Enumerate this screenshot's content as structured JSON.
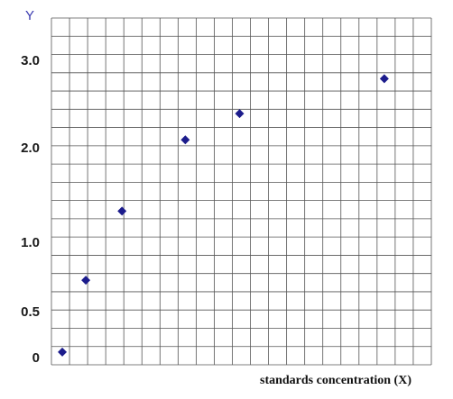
{
  "chart_data": {
    "type": "scatter",
    "ylabel": "Y",
    "xlabel": "standards concentration (X)",
    "yticks": [
      {
        "label": "0",
        "value": 0
      },
      {
        "label": "0.5",
        "value": 0.5
      },
      {
        "label": "1.0",
        "value": 1.0
      },
      {
        "label": "2.0",
        "value": 2.0
      },
      {
        "label": "3.0",
        "value": 3.0
      }
    ],
    "points": [
      {
        "x": 0.6,
        "y": 0.05
      },
      {
        "x": 1.9,
        "y": 0.72
      },
      {
        "x": 3.9,
        "y": 1.32
      },
      {
        "x": 7.4,
        "y": 2.08
      },
      {
        "x": 10.4,
        "y": 2.38
      },
      {
        "x": 18.4,
        "y": 2.78
      }
    ],
    "grid": true,
    "marker": "diamond",
    "colors": {
      "marker": "#1c1c8c",
      "grid": "#555555",
      "ylabel": "#3a3ab0"
    }
  }
}
